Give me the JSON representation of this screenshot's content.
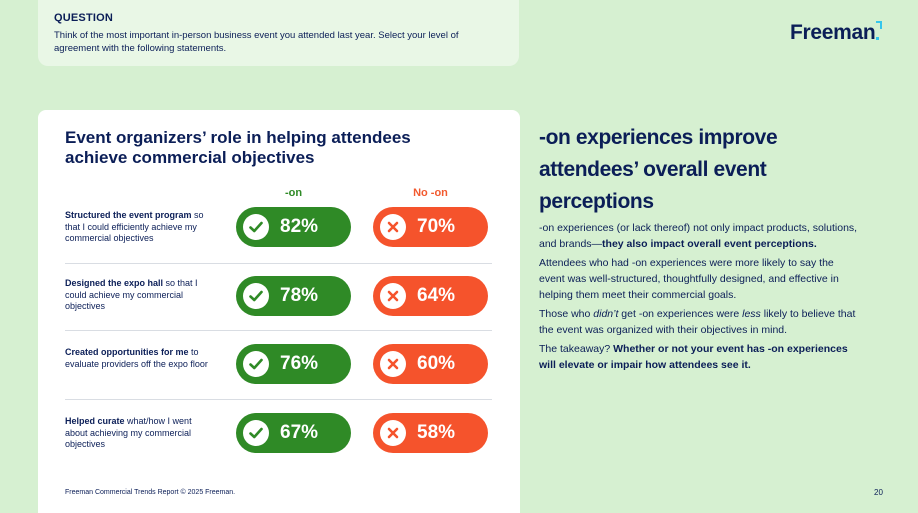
{
  "question": {
    "label": "QUESTION",
    "text": "Think of the most important in-person business event you attended last year. Select your level of agreement with the following statements."
  },
  "logo": {
    "text": "Freeman"
  },
  "card": {
    "title": "Event organizers’ role in helping attendees achieve commercial objectives",
    "col_hands_on": "-on",
    "col_no_hands_on": "No -on",
    "rows": [
      {
        "bold": "Structured the event program",
        "rest": " so that I could efficiently achieve my commercial objectives",
        "hands_on": "82%",
        "no_hands_on": "70%"
      },
      {
        "bold": "Designed the expo hall",
        "rest": " so that I could achieve my commercial objectives",
        "hands_on": "78%",
        "no_hands_on": "64%"
      },
      {
        "bold": "Created opportunities for me",
        "rest": " to evaluate providers off the expo floor",
        "hands_on": "76%",
        "no_hands_on": "60%"
      },
      {
        "bold": "Helped curate",
        "rest": " what/how I went about achieving my commercial objectives",
        "hands_on": "67%",
        "no_hands_on": "58%"
      }
    ]
  },
  "footer": {
    "note": "Freeman Commercial Trends Report © 2025 Freeman.",
    "page": "20"
  },
  "right": {
    "heading": "-on experiences improve attendees’ overall event perceptions",
    "p1_a": "-on experiences (or lack thereof) not only impact products, solutions, and brands—",
    "p1_b": "they also impact overall event perceptions.",
    "p2": "Attendees who had -on experiences were more likely to say the event was well-structured, thoughtfully designed, and effective in helping them meet their commercial goals.",
    "p3_a": "Those who ",
    "p3_didnt": "didn’t",
    "p3_b": " get -on experiences were ",
    "p3_less": "less",
    "p3_c": " likely to believe that the event was organized with their objectives in mind.",
    "p4_a": "The takeaway? ",
    "p4_b": "Whether or not your event has -on experiences will elevate or impair how attendees see it."
  },
  "colors": {
    "navy": "#0b1e57",
    "green": "#2f8a26",
    "red": "#f5532c",
    "background": "#d6f0d1"
  }
}
